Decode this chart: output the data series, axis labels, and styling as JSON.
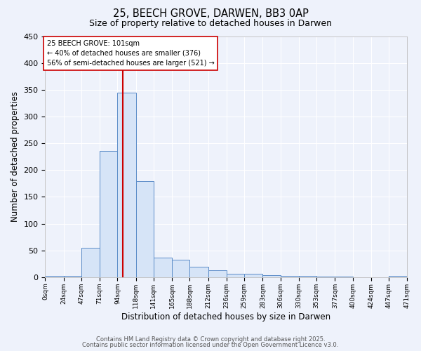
{
  "title_line1": "25, BEECH GROVE, DARWEN, BB3 0AP",
  "title_line2": "Size of property relative to detached houses in Darwen",
  "xlabel": "Distribution of detached houses by size in Darwen",
  "ylabel": "Number of detached properties",
  "bar_color": "#d6e4f7",
  "bar_edge_color": "#5b8cc8",
  "background_color": "#eef2fb",
  "grid_color": "#ffffff",
  "bin_edges": [
    0,
    24,
    47,
    71,
    94,
    118,
    141,
    165,
    188,
    212,
    236,
    259,
    283,
    306,
    330,
    353,
    377,
    400,
    424,
    447,
    471
  ],
  "bin_labels": [
    "0sqm",
    "24sqm",
    "47sqm",
    "71sqm",
    "94sqm",
    "118sqm",
    "141sqm",
    "165sqm",
    "188sqm",
    "212sqm",
    "236sqm",
    "259sqm",
    "283sqm",
    "306sqm",
    "330sqm",
    "353sqm",
    "377sqm",
    "400sqm",
    "424sqm",
    "447sqm",
    "471sqm"
  ],
  "values": [
    3,
    3,
    55,
    236,
    345,
    180,
    37,
    33,
    20,
    13,
    6,
    7,
    4,
    3,
    2,
    1,
    1,
    0,
    0,
    3
  ],
  "vline_x": 101,
  "vline_color": "#cc0000",
  "annotation_text": "25 BEECH GROVE: 101sqm\n← 40% of detached houses are smaller (376)\n56% of semi-detached houses are larger (521) →",
  "annotation_box_color": "#ffffff",
  "annotation_box_edge_color": "#cc0000",
  "ylim": [
    0,
    450
  ],
  "yticks": [
    0,
    50,
    100,
    150,
    200,
    250,
    300,
    350,
    400,
    450
  ],
  "footer_line1": "Contains HM Land Registry data © Crown copyright and database right 2025.",
  "footer_line2": "Contains public sector information licensed under the Open Government Licence v3.0."
}
